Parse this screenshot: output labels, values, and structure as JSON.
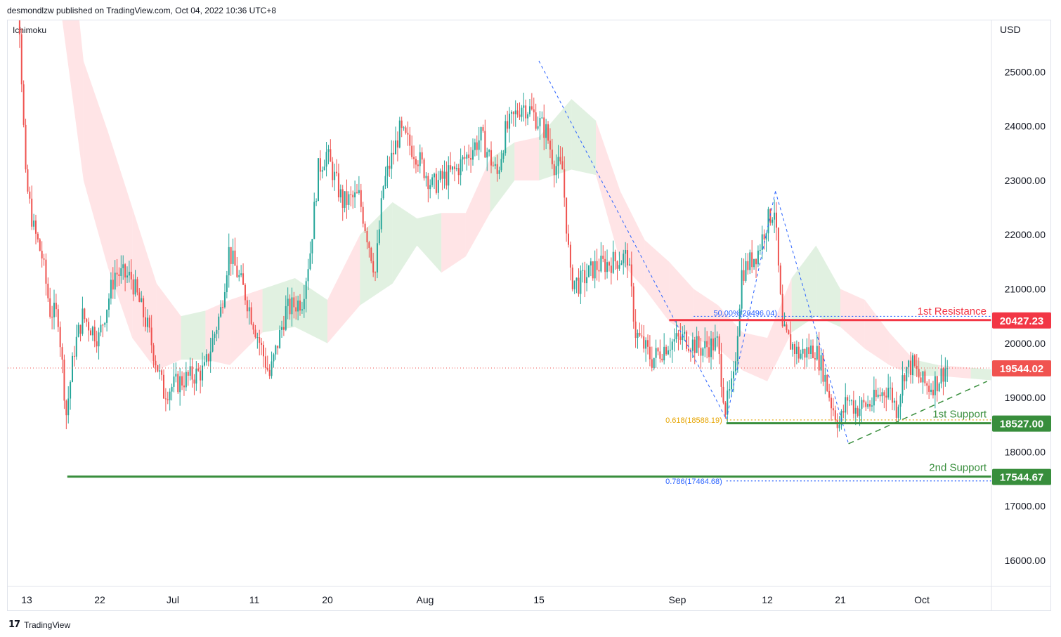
{
  "header": {
    "published": "desmondlzw published on TradingView.com, Oct 04, 2022 10:36 UTC+8",
    "indicator": "Ichimoku",
    "currency": "USD",
    "footer_brand": "TradingView",
    "footer_logo": "17"
  },
  "colors": {
    "up": "#26a69a",
    "down": "#ef5350",
    "resistance": "#f23645",
    "support": "#388e3c",
    "price_tag": "#f05350",
    "fib_blue": "#2962ff",
    "fib_orange": "#e6a400",
    "cloud_green": "#c8e6c9",
    "cloud_red": "#ffcdd2"
  },
  "chart_data": {
    "type": "candlestick",
    "symbol": "USD",
    "y_ticks": [
      16000,
      17000,
      18000,
      19000,
      20000,
      21000,
      22000,
      23000,
      24000,
      25000
    ],
    "y_tick_labels": [
      "16000.00",
      "17000.00",
      "18000.00",
      "19000.00",
      "20000.00",
      "21000.00",
      "22000.00",
      "23000.00",
      "24000.00",
      "25000.00"
    ],
    "ylim": [
      15550,
      26000
    ],
    "x_tick_labels": [
      "13",
      "22",
      "Jul",
      "11",
      "20",
      "Aug",
      "15",
      "Sep",
      "12",
      "21",
      "Oct"
    ],
    "x_tick_dates": [
      "2022-06-13",
      "2022-06-22",
      "2022-07-01",
      "2022-07-11",
      "2022-07-20",
      "2022-08-01",
      "2022-08-15",
      "2022-09-01",
      "2022-09-12",
      "2022-09-21",
      "2022-10-01"
    ],
    "xlim": [
      "2022-06-10",
      "2022-10-15"
    ],
    "last_price": 19544.02,
    "price_path": [
      {
        "date": "2022-06-10",
        "price": 29500
      },
      {
        "date": "2022-06-11",
        "price": 28400
      },
      {
        "date": "2022-06-12",
        "price": 26800
      },
      {
        "date": "2022-06-13",
        "price": 23000
      },
      {
        "date": "2022-06-14",
        "price": 22100
      },
      {
        "date": "2022-06-15",
        "price": 21600
      },
      {
        "date": "2022-06-16",
        "price": 20600
      },
      {
        "date": "2022-06-17",
        "price": 20500
      },
      {
        "date": "2022-06-18",
        "price": 18700
      },
      {
        "date": "2022-06-19",
        "price": 19900
      },
      {
        "date": "2022-06-20",
        "price": 20500
      },
      {
        "date": "2022-06-22",
        "price": 20100
      },
      {
        "date": "2022-06-24",
        "price": 21300
      },
      {
        "date": "2022-06-26",
        "price": 21200
      },
      {
        "date": "2022-06-28",
        "price": 20300
      },
      {
        "date": "2022-06-30",
        "price": 19100
      },
      {
        "date": "2022-07-02",
        "price": 19300
      },
      {
        "date": "2022-07-05",
        "price": 19500
      },
      {
        "date": "2022-07-07",
        "price": 20600
      },
      {
        "date": "2022-07-08",
        "price": 21700
      },
      {
        "date": "2022-07-10",
        "price": 20900
      },
      {
        "date": "2022-07-12",
        "price": 19900
      },
      {
        "date": "2022-07-13",
        "price": 19400
      },
      {
        "date": "2022-07-15",
        "price": 20600
      },
      {
        "date": "2022-07-17",
        "price": 20800
      },
      {
        "date": "2022-07-18",
        "price": 21700
      },
      {
        "date": "2022-07-19",
        "price": 23200
      },
      {
        "date": "2022-07-20",
        "price": 23500
      },
      {
        "date": "2022-07-22",
        "price": 22600
      },
      {
        "date": "2022-07-24",
        "price": 22700
      },
      {
        "date": "2022-07-26",
        "price": 21300
      },
      {
        "date": "2022-07-27",
        "price": 22900
      },
      {
        "date": "2022-07-29",
        "price": 23900
      },
      {
        "date": "2022-07-31",
        "price": 23500
      },
      {
        "date": "2022-08-02",
        "price": 22900
      },
      {
        "date": "2022-08-05",
        "price": 23200
      },
      {
        "date": "2022-08-08",
        "price": 23800
      },
      {
        "date": "2022-08-10",
        "price": 23100
      },
      {
        "date": "2022-08-11",
        "price": 23900
      },
      {
        "date": "2022-08-13",
        "price": 24400
      },
      {
        "date": "2022-08-14",
        "price": 24300
      },
      {
        "date": "2022-08-15",
        "price": 24100
      },
      {
        "date": "2022-08-16",
        "price": 23900
      },
      {
        "date": "2022-08-17",
        "price": 23300
      },
      {
        "date": "2022-08-18",
        "price": 23200
      },
      {
        "date": "2022-08-19",
        "price": 21200
      },
      {
        "date": "2022-08-20",
        "price": 21100
      },
      {
        "date": "2022-08-22",
        "price": 21400
      },
      {
        "date": "2022-08-24",
        "price": 21500
      },
      {
        "date": "2022-08-26",
        "price": 21600
      },
      {
        "date": "2022-08-27",
        "price": 20200
      },
      {
        "date": "2022-08-29",
        "price": 19700
      },
      {
        "date": "2022-08-31",
        "price": 20000
      },
      {
        "date": "2022-09-02",
        "price": 20100
      },
      {
        "date": "2022-09-04",
        "price": 19900
      },
      {
        "date": "2022-09-06",
        "price": 20000
      },
      {
        "date": "2022-09-07",
        "price": 18800
      },
      {
        "date": "2022-09-08",
        "price": 19300
      },
      {
        "date": "2022-09-09",
        "price": 21300
      },
      {
        "date": "2022-09-11",
        "price": 21700
      },
      {
        "date": "2022-09-12",
        "price": 22200
      },
      {
        "date": "2022-09-13",
        "price": 22500
      },
      {
        "date": "2022-09-14",
        "price": 20200
      },
      {
        "date": "2022-09-16",
        "price": 19800
      },
      {
        "date": "2022-09-18",
        "price": 19900
      },
      {
        "date": "2022-09-19",
        "price": 19500
      },
      {
        "date": "2022-09-20",
        "price": 18900
      },
      {
        "date": "2022-09-21",
        "price": 18500
      },
      {
        "date": "2022-09-22",
        "price": 19000
      },
      {
        "date": "2022-09-23",
        "price": 18800
      },
      {
        "date": "2022-09-25",
        "price": 18900
      },
      {
        "date": "2022-09-27",
        "price": 19200
      },
      {
        "date": "2022-09-28",
        "price": 18800
      },
      {
        "date": "2022-09-29",
        "price": 19500
      },
      {
        "date": "2022-09-30",
        "price": 19600
      },
      {
        "date": "2022-10-01",
        "price": 19300
      },
      {
        "date": "2022-10-02",
        "price": 19200
      },
      {
        "date": "2022-10-03",
        "price": 19300
      },
      {
        "date": "2022-10-04",
        "price": 19544.02
      }
    ],
    "ichimoku_cloud": [
      {
        "date": "2022-06-16",
        "top": 31000,
        "bottom": 27500,
        "bullish": false
      },
      {
        "date": "2022-06-20",
        "top": 25200,
        "bottom": 23000,
        "bullish": false
      },
      {
        "date": "2022-06-23",
        "top": 23900,
        "bottom": 21400,
        "bullish": false
      },
      {
        "date": "2022-06-26",
        "top": 22500,
        "bottom": 20100,
        "bullish": false
      },
      {
        "date": "2022-06-29",
        "top": 21100,
        "bottom": 19500,
        "bullish": false
      },
      {
        "date": "2022-07-02",
        "top": 20500,
        "bottom": 19700,
        "bullish": true
      },
      {
        "date": "2022-07-05",
        "top": 20600,
        "bottom": 19700,
        "bullish": false
      },
      {
        "date": "2022-07-08",
        "top": 20800,
        "bottom": 19600,
        "bullish": false
      },
      {
        "date": "2022-07-12",
        "top": 21000,
        "bottom": 20200,
        "bullish": true
      },
      {
        "date": "2022-07-16",
        "top": 21200,
        "bottom": 20300,
        "bullish": true
      },
      {
        "date": "2022-07-20",
        "top": 20800,
        "bottom": 20000,
        "bullish": false
      },
      {
        "date": "2022-07-24",
        "top": 22000,
        "bottom": 20700,
        "bullish": true
      },
      {
        "date": "2022-07-28",
        "top": 22600,
        "bottom": 21100,
        "bullish": true
      },
      {
        "date": "2022-07-31",
        "top": 22300,
        "bottom": 21800,
        "bullish": true
      },
      {
        "date": "2022-08-03",
        "top": 22400,
        "bottom": 21300,
        "bullish": false
      },
      {
        "date": "2022-08-06",
        "top": 22400,
        "bottom": 21600,
        "bullish": false
      },
      {
        "date": "2022-08-09",
        "top": 23400,
        "bottom": 22400,
        "bullish": true
      },
      {
        "date": "2022-08-12",
        "top": 23700,
        "bottom": 23000,
        "bullish": false
      },
      {
        "date": "2022-08-15",
        "top": 23800,
        "bottom": 23000,
        "bullish": true
      },
      {
        "date": "2022-08-19",
        "top": 24500,
        "bottom": 23200,
        "bullish": true
      },
      {
        "date": "2022-08-22",
        "top": 24100,
        "bottom": 23100,
        "bullish": false
      },
      {
        "date": "2022-08-25",
        "top": 22800,
        "bottom": 21500,
        "bullish": false
      },
      {
        "date": "2022-08-28",
        "top": 21900,
        "bottom": 21000,
        "bullish": false
      },
      {
        "date": "2022-08-31",
        "top": 21500,
        "bottom": 20400,
        "bullish": false
      },
      {
        "date": "2022-09-03",
        "top": 21000,
        "bottom": 20100,
        "bullish": false
      },
      {
        "date": "2022-09-06",
        "top": 20700,
        "bottom": 19900,
        "bullish": false
      },
      {
        "date": "2022-09-09",
        "top": 20200,
        "bottom": 19500,
        "bullish": false
      },
      {
        "date": "2022-09-12",
        "top": 20100,
        "bottom": 19300,
        "bullish": false
      },
      {
        "date": "2022-09-15",
        "top": 21200,
        "bottom": 20200,
        "bullish": true
      },
      {
        "date": "2022-09-18",
        "top": 21800,
        "bottom": 20500,
        "bullish": true
      },
      {
        "date": "2022-09-21",
        "top": 21000,
        "bottom": 20300,
        "bullish": false
      },
      {
        "date": "2022-09-24",
        "top": 20800,
        "bottom": 19900,
        "bullish": false
      },
      {
        "date": "2022-09-27",
        "top": 20200,
        "bottom": 19600,
        "bullish": false
      },
      {
        "date": "2022-09-30",
        "top": 19700,
        "bottom": 19400,
        "bullish": true
      },
      {
        "date": "2022-10-03",
        "top": 19600,
        "bottom": 19400,
        "bullish": false
      },
      {
        "date": "2022-10-07",
        "top": 19550,
        "bottom": 19350,
        "bullish": true
      },
      {
        "date": "2022-10-11",
        "top": 19500,
        "bottom": 19300,
        "bullish": false
      }
    ],
    "levels": [
      {
        "name": "1st Resistance",
        "value": 20427.23,
        "label": "20427.23",
        "start": "2022-08-31",
        "color_key": "resistance"
      },
      {
        "name": "1st Support",
        "value": 18527.0,
        "label": "18527.00",
        "start": "2022-09-07",
        "color_key": "support"
      },
      {
        "name": "2nd Support",
        "value": 17544.67,
        "label": "17544.67",
        "start": "2022-06-18",
        "color_key": "support"
      }
    ],
    "current_price_tag": "19544.02",
    "fib_levels": [
      {
        "label": "50.00%(20496.04)",
        "value": 20496.04,
        "start": "2022-09-03",
        "color_key": "fib_blue",
        "text_side": "before"
      },
      {
        "label": "0.618(18588.19)",
        "value": 18588.19,
        "start": "2022-09-07",
        "color_key": "fib_orange",
        "text_side": "left"
      },
      {
        "label": "0.786(17464.68)",
        "value": 17464.68,
        "start": "2022-09-07",
        "color_key": "fib_blue",
        "text_side": "left"
      }
    ],
    "trend_lines": [
      {
        "from": {
          "date": "2022-08-15",
          "price": 25200
        },
        "to": {
          "date": "2022-09-07",
          "price": 18600
        }
      },
      {
        "from": {
          "date": "2022-09-07",
          "price": 18600
        },
        "to": {
          "date": "2022-09-13",
          "price": 22800
        }
      },
      {
        "from": {
          "date": "2022-09-13",
          "price": 22800
        },
        "to": {
          "date": "2022-09-22",
          "price": 18150
        }
      }
    ],
    "support_trendline": {
      "from": {
        "date": "2022-09-22",
        "price": 18150
      },
      "to": {
        "date": "2022-10-09",
        "price": 19300
      }
    }
  }
}
